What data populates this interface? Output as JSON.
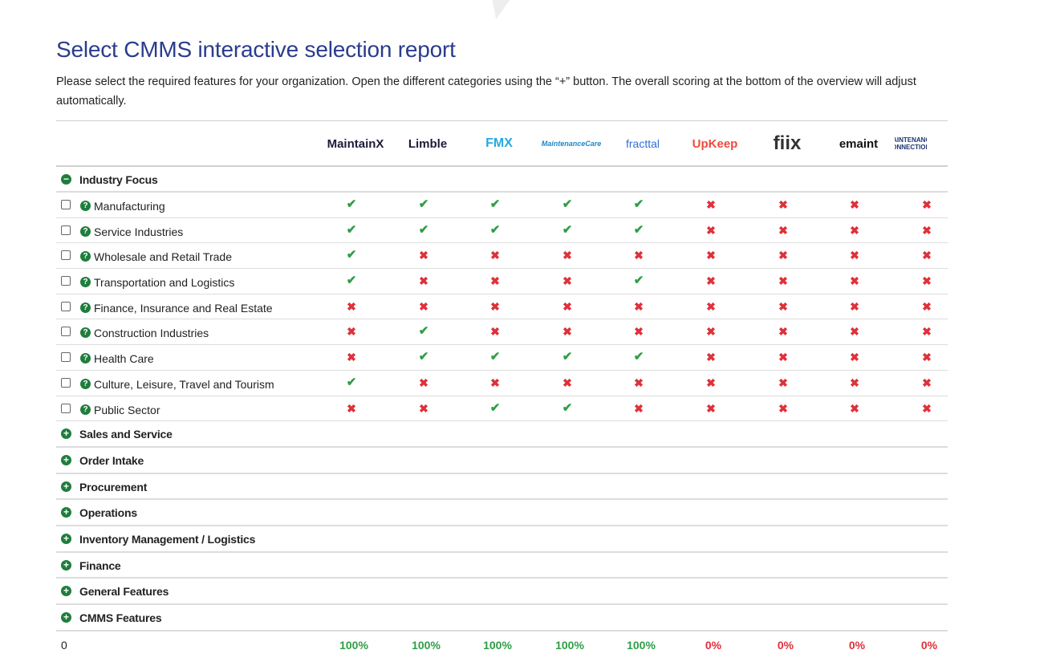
{
  "page": {
    "title": "Select CMMS interactive selection report",
    "intro": "Please select the required features for your organization. Open the different categories using the “+” button. The overall scoring at the bottom of the overview will adjust automatically."
  },
  "colors": {
    "title": "#2a3c8c",
    "yes": "#2e9e46",
    "no": "#e0303a",
    "icon": "#1f7d3c"
  },
  "vendors": [
    {
      "name": "MaintainX",
      "logo_text": "MaintainX",
      "color": "#1b1b3a"
    },
    {
      "name": "Limble",
      "logo_text": "Limble",
      "color": "#1b1b3a"
    },
    {
      "name": "FMX",
      "logo_text": "FMX",
      "color": "#26a9e0"
    },
    {
      "name": "MaintenanceCare",
      "logo_text": "MaintenanceCare",
      "color": "#1e88c8"
    },
    {
      "name": "Fracttal",
      "logo_text": "fracttal",
      "color": "#2f6fd6"
    },
    {
      "name": "UpKeep",
      "logo_text": "UpKeep",
      "color": "#ef4a3c"
    },
    {
      "name": "Fiix",
      "logo_text": "fiix",
      "color": "#333333"
    },
    {
      "name": "eMaint",
      "logo_text": "emaint",
      "color": "#111111"
    },
    {
      "name": "Maintenance Connection",
      "logo_text": "MAINTENANCE CONNECTION",
      "color": "#1a3570"
    }
  ],
  "expanded_category": {
    "label": "Industry Focus",
    "icon": "minus-circle-icon"
  },
  "features": [
    {
      "label": "Manufacturing",
      "checked": false,
      "support": [
        true,
        true,
        true,
        true,
        true,
        false,
        false,
        false,
        false
      ]
    },
    {
      "label": "Service Industries",
      "checked": false,
      "support": [
        true,
        true,
        true,
        true,
        true,
        false,
        false,
        false,
        false
      ]
    },
    {
      "label": "Wholesale and Retail Trade",
      "checked": false,
      "support": [
        true,
        false,
        false,
        false,
        false,
        false,
        false,
        false,
        false
      ]
    },
    {
      "label": "Transportation and Logistics",
      "checked": false,
      "support": [
        true,
        false,
        false,
        false,
        true,
        false,
        false,
        false,
        false
      ]
    },
    {
      "label": "Finance, Insurance and Real Estate",
      "checked": false,
      "support": [
        false,
        false,
        false,
        false,
        false,
        false,
        false,
        false,
        false
      ]
    },
    {
      "label": "Construction Industries",
      "checked": false,
      "support": [
        false,
        true,
        false,
        false,
        false,
        false,
        false,
        false,
        false
      ]
    },
    {
      "label": "Health Care",
      "checked": false,
      "support": [
        false,
        true,
        true,
        true,
        true,
        false,
        false,
        false,
        false
      ]
    },
    {
      "label": "Culture, Leisure, Travel and Tourism",
      "checked": false,
      "support": [
        true,
        false,
        false,
        false,
        false,
        false,
        false,
        false,
        false
      ]
    },
    {
      "label": "Public Sector",
      "checked": false,
      "support": [
        false,
        false,
        true,
        true,
        false,
        false,
        false,
        false,
        false
      ]
    }
  ],
  "collapsed_categories": [
    "Sales and Service",
    "Order Intake",
    "Procurement",
    "Operations",
    "Inventory Management / Logistics",
    "Finance",
    "General Features",
    "CMMS Features"
  ],
  "scores": {
    "selected_count": "0",
    "values": [
      "100%",
      "100%",
      "100%",
      "100%",
      "100%",
      "0%",
      "0%",
      "0%",
      "0%"
    ],
    "status": [
      "good",
      "good",
      "good",
      "good",
      "good",
      "bad",
      "bad",
      "bad",
      "bad"
    ]
  }
}
